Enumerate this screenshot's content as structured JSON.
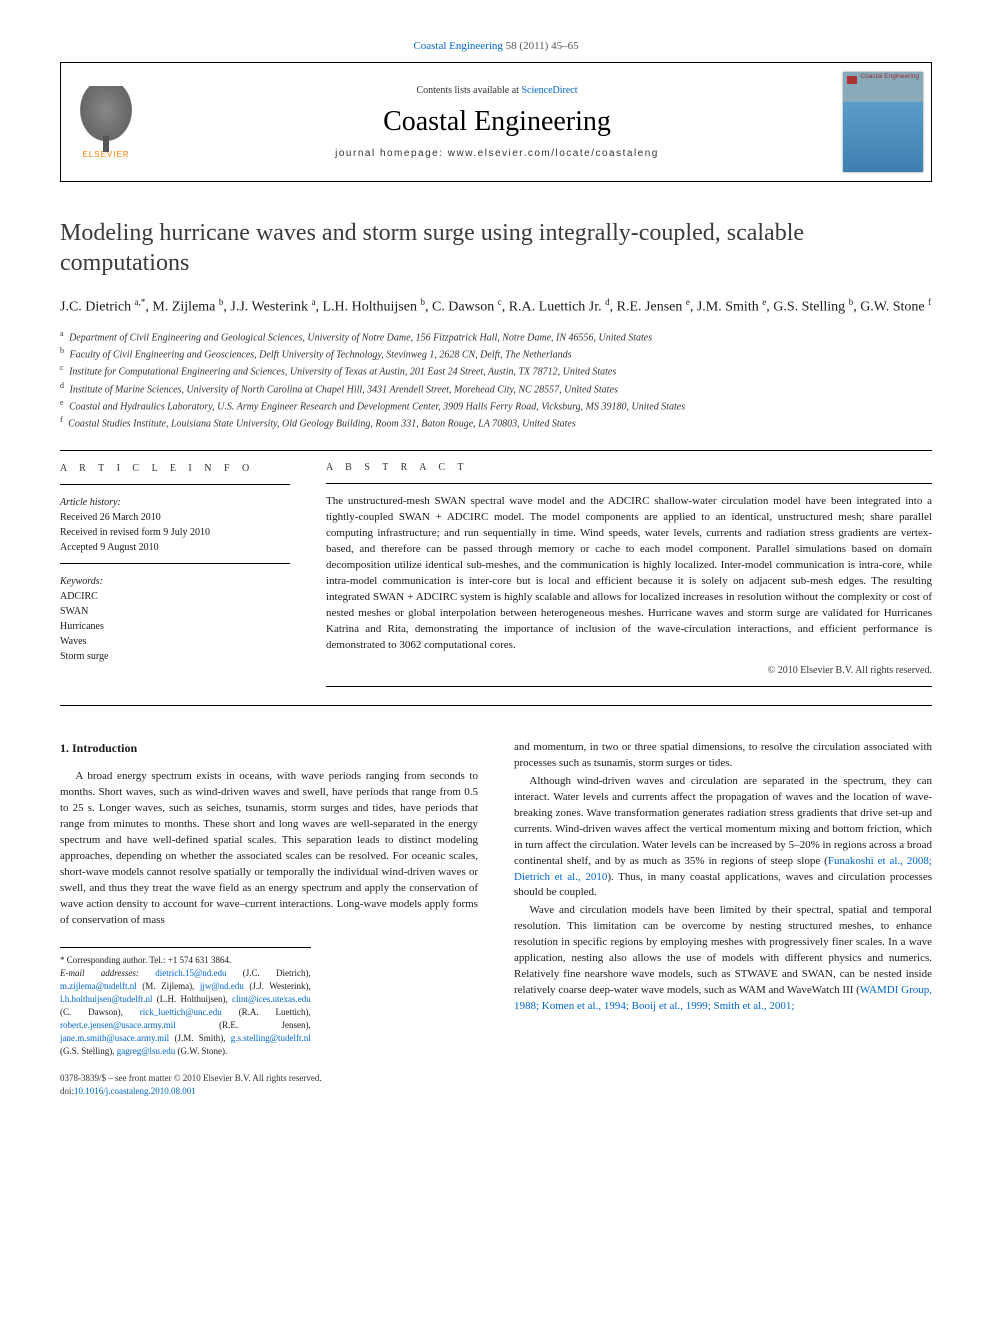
{
  "journal_ref": {
    "link_text": "Coastal Engineering",
    "citation": " 58 (2011) 45–65"
  },
  "header": {
    "contents_line_pre": "Contents lists available at ",
    "contents_link": "ScienceDirect",
    "journal_name": "Coastal Engineering",
    "homepage_pre": "journal homepage: ",
    "homepage": "www.elsevier.com/locate/coastaleng",
    "elsevier_label": "ELSEVIER",
    "cover_title": "Coastal Engineering"
  },
  "title": "Modeling hurricane waves and storm surge using integrally-coupled, scalable computations",
  "authors_line": "J.C. Dietrich <sup>a,*</sup>, M. Zijlema <sup>b</sup>, J.J. Westerink <sup>a</sup>, L.H. Holthuijsen <sup>b</sup>, C. Dawson <sup>c</sup>, R.A. Luettich Jr. <sup>d</sup>, R.E. Jensen <sup>e</sup>, J.M. Smith <sup>e</sup>, G.S. Stelling <sup>b</sup>, G.W. Stone <sup>f</sup>",
  "affiliations": [
    {
      "sup": "a",
      "text": "Department of Civil Engineering and Geological Sciences, University of Notre Dame, 156 Fitzpatrick Hall, Notre Dame, IN 46556, United States"
    },
    {
      "sup": "b",
      "text": "Faculty of Civil Engineering and Geosciences, Delft University of Technology, Stevinweg 1, 2628 CN, Delft, The Netherlands"
    },
    {
      "sup": "c",
      "text": "Institute for Computational Engineering and Sciences, University of Texas at Austin, 201 East 24 Street, Austin, TX 78712, United States"
    },
    {
      "sup": "d",
      "text": "Institute of Marine Sciences, University of North Carolina at Chapel Hill, 3431 Arendell Street, Morehead City, NC 28557, United States"
    },
    {
      "sup": "e",
      "text": "Coastal and Hydraulics Laboratory, U.S. Army Engineer Research and Development Center, 3909 Halls Ferry Road, Vicksburg, MS 39180, United States"
    },
    {
      "sup": "f",
      "text": "Coastal Studies Institute, Louisiana State University, Old Geology Building, Room 331, Baton Rouge, LA 70803, United States"
    }
  ],
  "article_info": {
    "section_label": "A R T I C L E   I N F O",
    "history_label": "Article history:",
    "received": "Received 26 March 2010",
    "revised": "Received in revised form 9 July 2010",
    "accepted": "Accepted 9 August 2010",
    "keywords_label": "Keywords:",
    "keywords": [
      "ADCIRC",
      "SWAN",
      "Hurricanes",
      "Waves",
      "Storm surge"
    ]
  },
  "abstract": {
    "section_label": "A B S T R A C T",
    "text": "The unstructured-mesh SWAN spectral wave model and the ADCIRC shallow-water circulation model have been integrated into a tightly-coupled SWAN + ADCIRC model. The model components are applied to an identical, unstructured mesh; share parallel computing infrastructure; and run sequentially in time. Wind speeds, water levels, currents and radiation stress gradients are vertex-based, and therefore can be passed through memory or cache to each model component. Parallel simulations based on domain decomposition utilize identical sub-meshes, and the communication is highly localized. Inter-model communication is intra-core, while intra-model communication is inter-core but is local and efficient because it is solely on adjacent sub-mesh edges. The resulting integrated SWAN + ADCIRC system is highly scalable and allows for localized increases in resolution without the complexity or cost of nested meshes or global interpolation between heterogeneous meshes. Hurricane waves and storm surge are validated for Hurricanes Katrina and Rita, demonstrating the importance of inclusion of the wave-circulation interactions, and efficient performance is demonstrated to 3062 computational cores.",
    "copyright": "© 2010 Elsevier B.V. All rights reserved."
  },
  "intro": {
    "heading": "1. Introduction",
    "p1": "A broad energy spectrum exists in oceans, with wave periods ranging from seconds to months. Short waves, such as wind-driven waves and swell, have periods that range from 0.5 to 25 s. Longer waves, such as seiches, tsunamis, storm surges and tides, have periods that range from minutes to months. These short and long waves are well-separated in the energy spectrum and have well-defined spatial scales. This separation leads to distinct modeling approaches, depending on whether the associated scales can be resolved. For oceanic scales, short-wave models cannot resolve spatially or temporally the individual wind-driven waves or swell, and thus they treat the wave field as an energy spectrum and apply the conservation of wave action density to account for wave–current interactions. Long-wave models apply forms of conservation of mass",
    "p2": "and momentum, in two or three spatial dimensions, to resolve the circulation associated with processes such as tsunamis, storm surges or tides.",
    "p3_pre": "Although wind-driven waves and circulation are separated in the spectrum, they can interact. Water levels and currents affect the propagation of waves and the location of wave-breaking zones. Wave transformation generates radiation stress gradients that drive set-up and currents. Wind-driven waves affect the vertical momentum mixing and bottom friction, which in turn affect the circulation. Water levels can be increased by 5–20% in regions across a broad continental shelf, and by as much as 35% in regions of steep slope (",
    "p3_link": "Funakoshi et al., 2008; Dietrich et al., 2010",
    "p3_post": "). Thus, in many coastal applications, waves and circulation processes should be coupled.",
    "p4_pre": "Wave and circulation models have been limited by their spectral, spatial and temporal resolution. This limitation can be overcome by nesting structured meshes, to enhance resolution in specific regions by employing meshes with progressively finer scales. In a wave application, nesting also allows the use of models with different physics and numerics. Relatively fine nearshore wave models, such as STWAVE and SWAN, can be nested inside relatively coarse deep-water wave models, such as WAM and WaveWatch III (",
    "p4_link": "WAMDI Group, 1988; Komen et al., 1994; Booij et al., 1999; Smith et al., 2001;"
  },
  "footnote": {
    "corresp_label": "* Corresponding author. Tel.: +1 574 631 3864.",
    "email_label": "E-mail addresses: ",
    "emails": [
      {
        "addr": "dietrich.15@nd.edu",
        "who": "(J.C. Dietrich)"
      },
      {
        "addr": "m.zijlema@tudelft.nl",
        "who": "(M. Zijlema)"
      },
      {
        "addr": "jjw@nd.edu",
        "who": "(J.J. Westerink)"
      },
      {
        "addr": "l.h.holthuijsen@tudelft.nl",
        "who": "(L.H. Holthuijsen)"
      },
      {
        "addr": "clint@ices.utexas.edu",
        "who": "(C. Dawson)"
      },
      {
        "addr": "rick_luettich@unc.edu",
        "who": "(R.A. Luettich)"
      },
      {
        "addr": "robert.e.jensen@usace.army.mil",
        "who": "(R.E. Jensen)"
      },
      {
        "addr": "jane.m.smith@usace.army.mil",
        "who": "(J.M. Smith)"
      },
      {
        "addr": "g.s.stelling@tudelft.nl",
        "who": "(G.S. Stelling)"
      },
      {
        "addr": "gagreg@lsu.edu",
        "who": "(G.W. Stone)."
      }
    ]
  },
  "footer": {
    "issn_line": "0378-3839/$ – see front matter © 2010 Elsevier B.V. All rights reserved.",
    "doi_pre": "doi:",
    "doi": "10.1016/j.coastaleng.2010.08.001"
  },
  "colors": {
    "link": "#0066cc",
    "elsevier_orange": "#ff7a00",
    "text": "#1a1a1a"
  }
}
